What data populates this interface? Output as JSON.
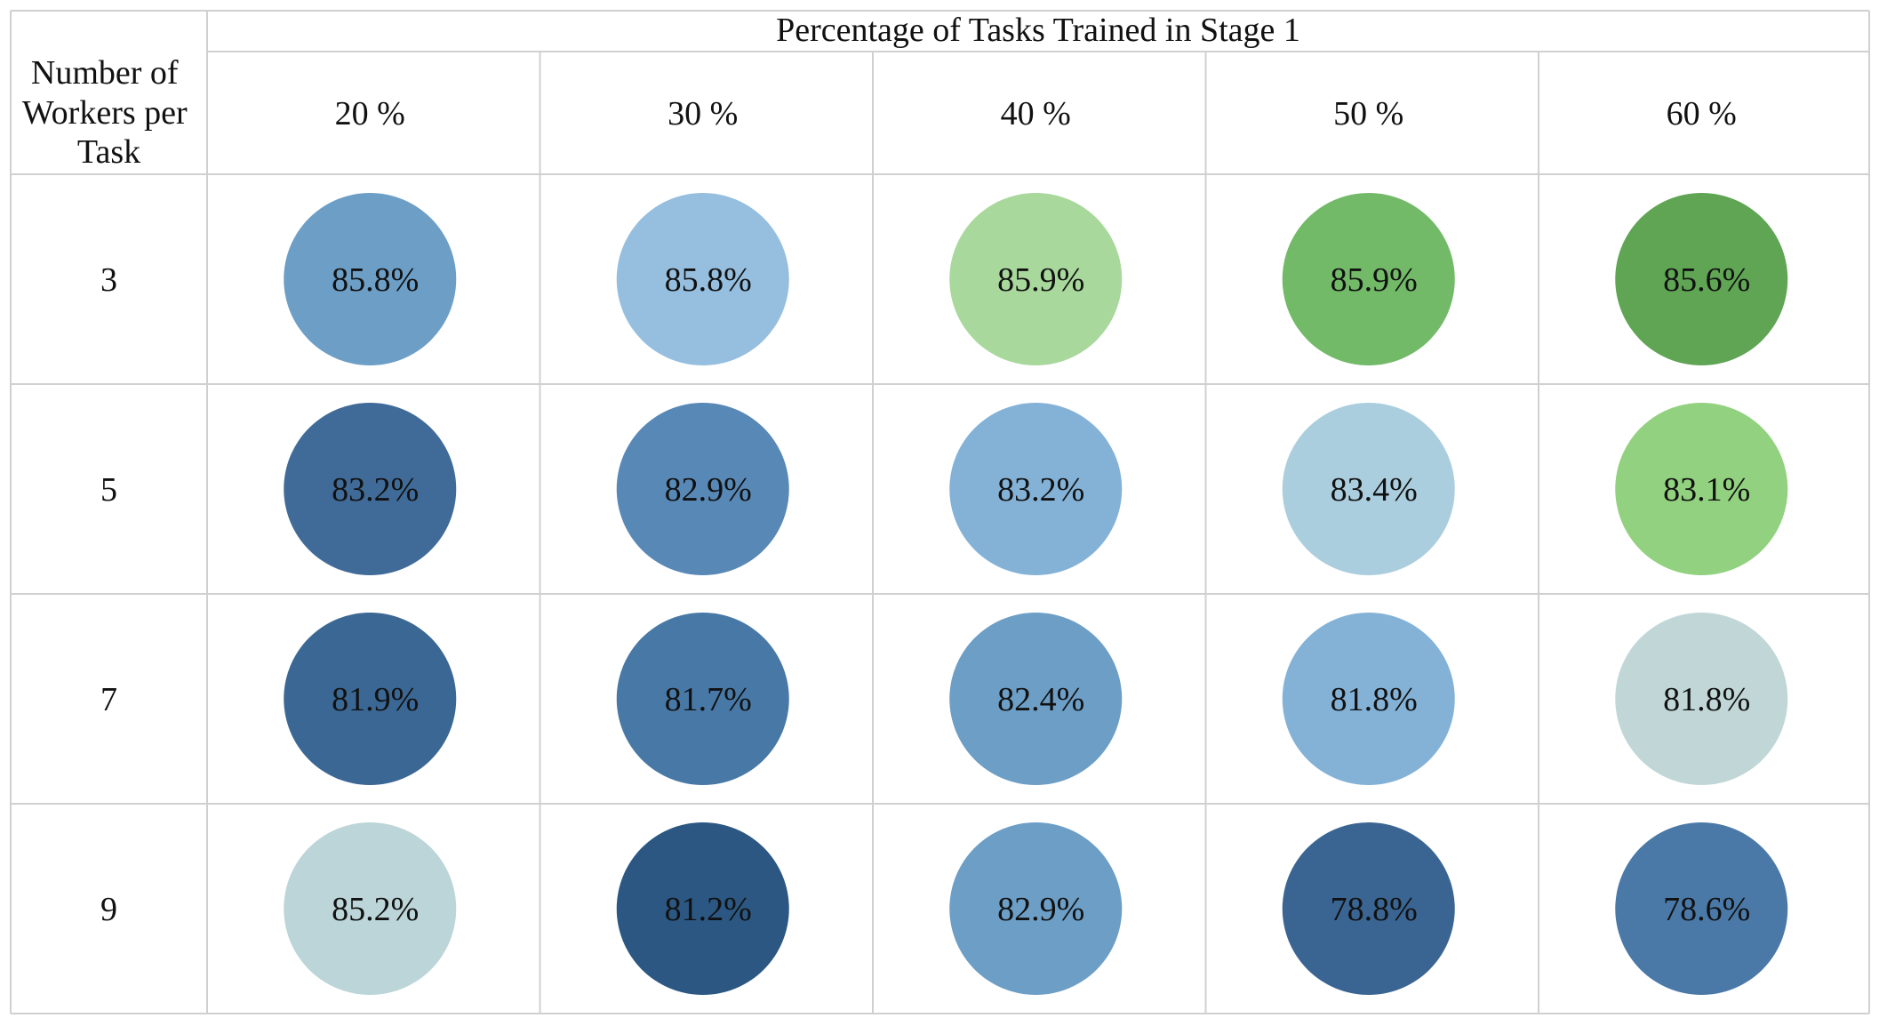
{
  "chart_data": {
    "type": "table",
    "column_group_label": "Percentage of Tasks Trained in Stage 1",
    "row_header_label_lines": [
      "Number of",
      "Workers per",
      "Task"
    ],
    "columns": [
      "20 %",
      "30 %",
      "40 %",
      "50 %",
      "60 %"
    ],
    "rows": [
      "3",
      "5",
      "7",
      "9"
    ],
    "values": [
      [
        85.8,
        85.8,
        85.9,
        85.9,
        85.6
      ],
      [
        83.2,
        82.9,
        83.2,
        83.4,
        83.1
      ],
      [
        81.9,
        81.7,
        82.4,
        81.8,
        81.8
      ],
      [
        85.2,
        81.2,
        82.9,
        78.8,
        78.6
      ]
    ],
    "value_labels": [
      [
        "85.8%",
        "85.8%",
        "85.9%",
        "85.9%",
        "85.6%"
      ],
      [
        "83.2%",
        "82.9%",
        "83.2%",
        "83.4%",
        "83.1%"
      ],
      [
        "81.9%",
        "81.7%",
        "82.4%",
        "81.8%",
        "81.8%"
      ],
      [
        "85.2%",
        "81.2%",
        "82.9%",
        "78.8%",
        "78.6%"
      ]
    ],
    "circle_colors": [
      [
        "#6c9ec6",
        "#96bfdf",
        "#a8d89c",
        "#72ba68",
        "#5fa554"
      ],
      [
        "#406b98",
        "#5888b6",
        "#84b2d7",
        "#abcede",
        "#92d17f"
      ],
      [
        "#3b6794",
        "#4878a6",
        "#6c9ec6",
        "#84b2d7",
        "#c1d7d7"
      ],
      [
        "#bcd5d8",
        "#2b5782",
        "#6c9ec6",
        "#3a6592",
        "#4a79a8"
      ]
    ]
  }
}
